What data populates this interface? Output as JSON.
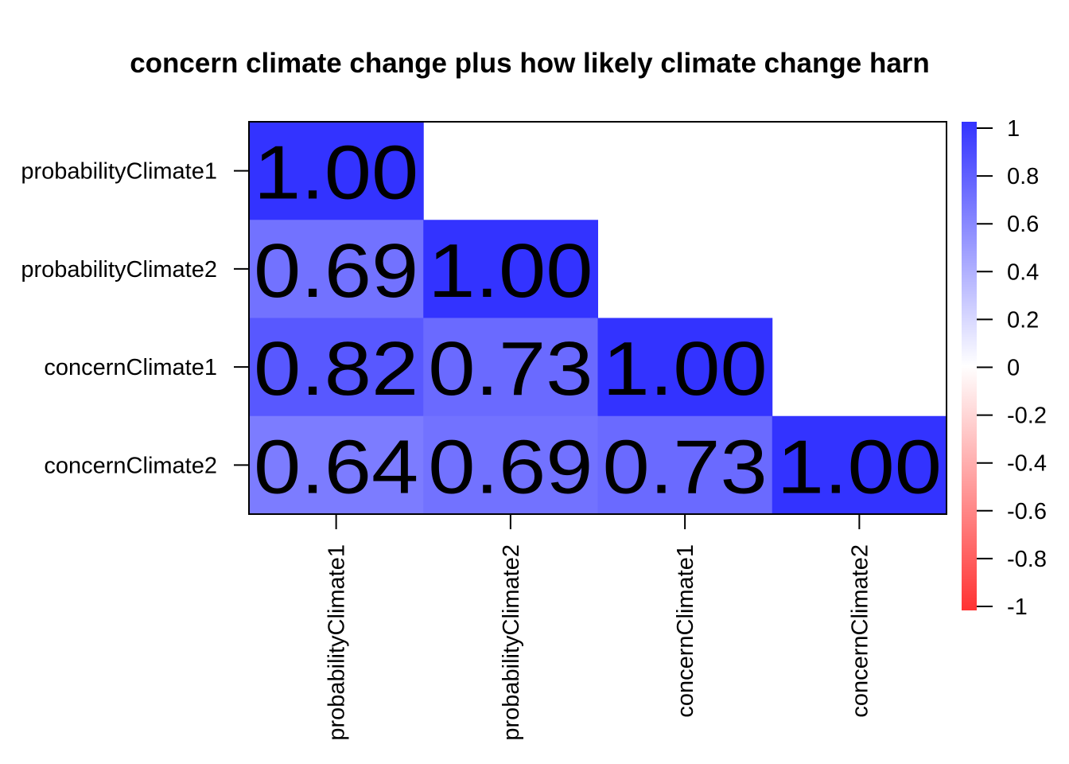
{
  "chart_data": {
    "type": "heatmap",
    "title": "concern climate change plus how likely climate change harn",
    "variables": [
      "probabilityClimate1",
      "probabilityClimate2",
      "concernClimate1",
      "concernClimate2"
    ],
    "matrix": [
      [
        1.0,
        null,
        null,
        null
      ],
      [
        0.69,
        1.0,
        null,
        null
      ],
      [
        0.82,
        0.73,
        1.0,
        null
      ],
      [
        0.64,
        0.69,
        0.73,
        1.0
      ]
    ],
    "cell_labels": [
      [
        "1.00",
        "",
        "",
        ""
      ],
      [
        "0.69",
        "1.00",
        "",
        ""
      ],
      [
        "0.82",
        "0.73",
        "1.00",
        ""
      ],
      [
        "0.64",
        "0.69",
        "0.73",
        "1.00"
      ]
    ],
    "triangle": "lower",
    "color_scale": {
      "min": -1,
      "max": 1,
      "low_color": "#FF3333",
      "mid_color": "#FFFFFF",
      "high_color": "#3333FF",
      "ticks": [
        1,
        0.8,
        0.6,
        0.4,
        0.2,
        0,
        -0.2,
        -0.4,
        -0.6,
        -0.8,
        -1
      ],
      "tick_labels": [
        "1",
        "0.8",
        "0.6",
        "0.4",
        "0.2",
        "0",
        "-0.2",
        "-0.4",
        "-0.6",
        "-0.8",
        "-1"
      ]
    },
    "legend_position": "right",
    "x_tick_rotation": "vertical"
  }
}
